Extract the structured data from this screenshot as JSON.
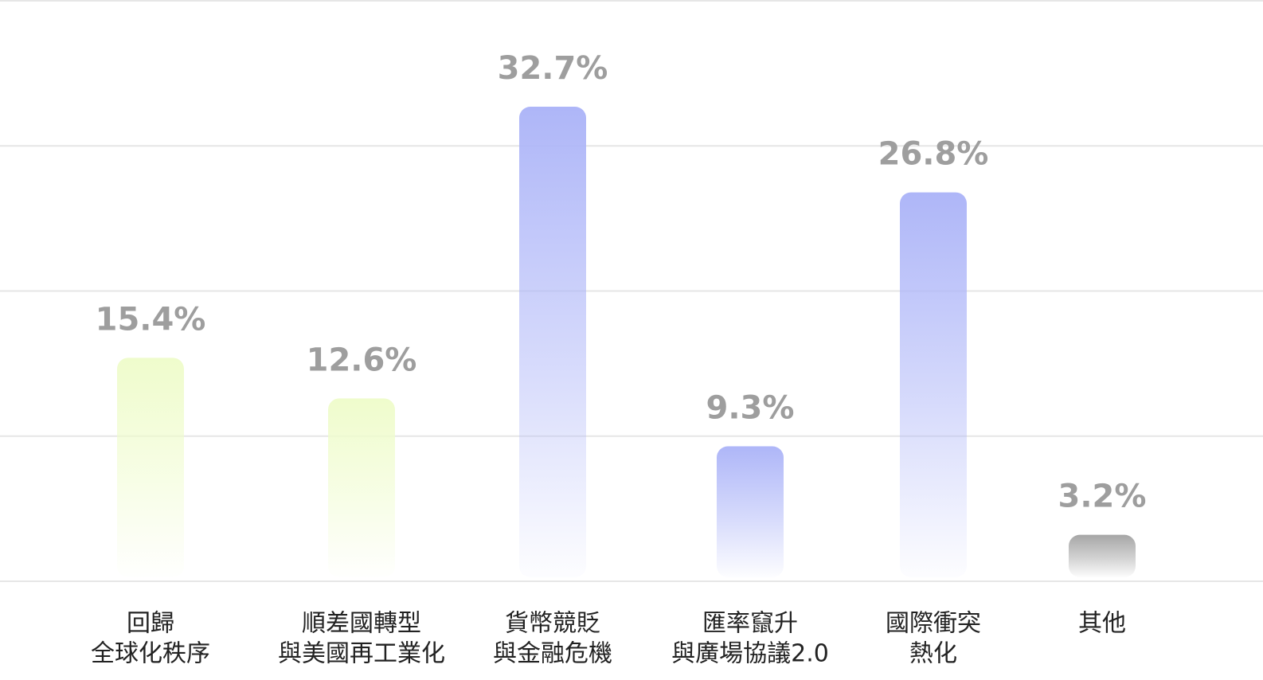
{
  "chart_data": {
    "type": "bar",
    "categories": [
      [
        "回歸",
        "全球化秩序"
      ],
      [
        "順差國轉型",
        "與美國再工業化"
      ],
      [
        "貨幣競貶",
        "與金融危機"
      ],
      [
        "匯率竄升",
        "與廣場協議2.0"
      ],
      [
        "國際衝突",
        "熱化"
      ],
      [
        "其他"
      ]
    ],
    "values": [
      15.4,
      12.6,
      32.7,
      9.3,
      26.8,
      3.2
    ],
    "value_labels": [
      "15.4%",
      "12.6%",
      "32.7%",
      "9.3%",
      "26.8%",
      "3.2%"
    ],
    "colors": [
      "#effccc",
      "#effccc",
      "#aeb6f8",
      "#aeb6f8",
      "#aeb6f8",
      "#a6a6a6"
    ],
    "ylim": [
      0,
      40
    ],
    "yticks": [
      0,
      10,
      20,
      30,
      40
    ],
    "grid": true
  }
}
